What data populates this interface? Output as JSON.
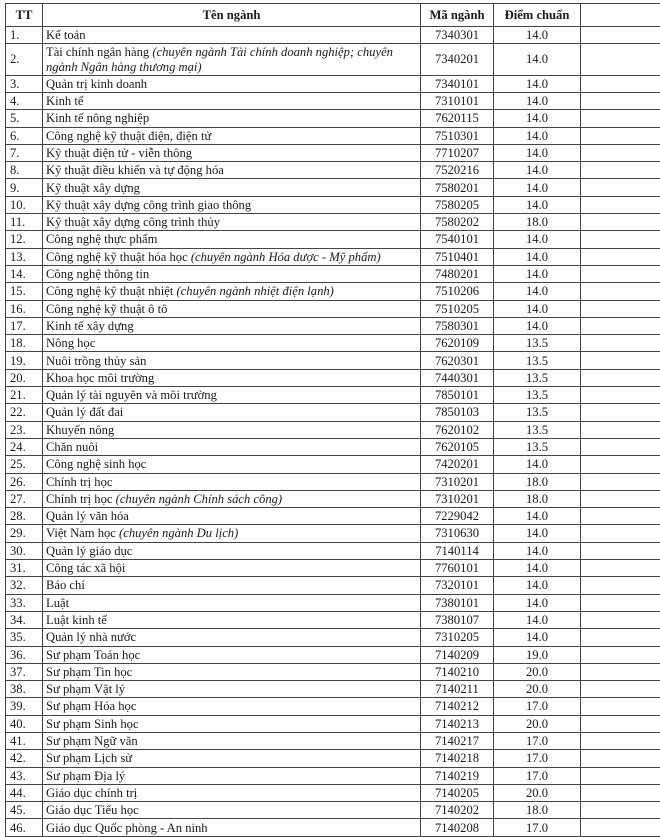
{
  "headers": {
    "tt": "TT",
    "name": "Tên ngành",
    "code": "Mã ngành",
    "score": "Điểm chuẩn"
  },
  "rows": [
    {
      "tt": "1.",
      "name": "Kế toán",
      "note": "",
      "code": "7340301",
      "score": "14.0"
    },
    {
      "tt": "2.",
      "name": "Tài chính ngân hàng ",
      "note": "(chuyên ngành Tài chính doanh nghiệp; chuyên ngành Ngân hàng thương mại)",
      "code": "7340201",
      "score": "14.0"
    },
    {
      "tt": "3.",
      "name": "Quản trị kinh doanh",
      "note": "",
      "code": "7340101",
      "score": "14.0"
    },
    {
      "tt": "4.",
      "name": "Kinh tế",
      "note": "",
      "code": "7310101",
      "score": "14.0"
    },
    {
      "tt": "5.",
      "name": "Kinh tế nông nghiệp",
      "note": "",
      "code": "7620115",
      "score": "14.0"
    },
    {
      "tt": "6.",
      "name": "Công nghệ kỹ thuật điện, điện tử",
      "note": "",
      "code": "7510301",
      "score": "14.0"
    },
    {
      "tt": "7.",
      "name": "Kỹ thuật điện tử - viễn thông",
      "note": "",
      "code": "7710207",
      "score": "14.0"
    },
    {
      "tt": "8.",
      "name": "Kỹ thuật điều khiển và tự động hóa",
      "note": "",
      "code": "7520216",
      "score": "14.0"
    },
    {
      "tt": "9.",
      "name": "Kỹ thuật xây dựng",
      "note": "",
      "code": "7580201",
      "score": "14.0"
    },
    {
      "tt": "10.",
      "name": "Kỹ thuật xây dựng công trình giao thông",
      "note": "",
      "code": "7580205",
      "score": "14.0"
    },
    {
      "tt": "11.",
      "name": "Kỹ thuật xây dựng công trình thủy",
      "note": "",
      "code": "7580202",
      "score": "18.0"
    },
    {
      "tt": "12.",
      "name": "Công nghệ thực phẩm",
      "note": "",
      "code": "7540101",
      "score": "14.0"
    },
    {
      "tt": "13.",
      "name": "Công nghệ kỹ thuật hóa học ",
      "note": "(chuyên ngành Hóa dược - Mỹ phẩm)",
      "code": "7510401",
      "score": "14.0"
    },
    {
      "tt": "14.",
      "name": "Công nghệ thông tin",
      "note": "",
      "code": "7480201",
      "score": "14.0"
    },
    {
      "tt": "15.",
      "name": "Công nghệ kỹ thuật nhiệt ",
      "note": "(chuyên ngành nhiệt điện lạnh)",
      "code": "7510206",
      "score": "14.0"
    },
    {
      "tt": "16.",
      "name": "Công nghệ kỹ thuật ô tô",
      "note": "",
      "code": "7510205",
      "score": "14.0"
    },
    {
      "tt": "17.",
      "name": "Kinh tế xây dựng",
      "note": "",
      "code": "7580301",
      "score": "14.0"
    },
    {
      "tt": "18.",
      "name": "Nông học",
      "note": "",
      "code": "7620109",
      "score": "13.5"
    },
    {
      "tt": "19.",
      "name": "Nuôi trồng thủy sản",
      "note": "",
      "code": "7620301",
      "score": "13.5"
    },
    {
      "tt": "20.",
      "name": "Khoa học môi trường",
      "note": "",
      "code": "7440301",
      "score": "13.5"
    },
    {
      "tt": "21.",
      "name": "Quản lý tài nguyên và môi trường",
      "note": "",
      "code": "7850101",
      "score": "13.5"
    },
    {
      "tt": "22.",
      "name": "Quản lý đất đai",
      "note": "",
      "code": "7850103",
      "score": "13.5"
    },
    {
      "tt": "23.",
      "name": "Khuyến nông",
      "note": "",
      "code": "7620102",
      "score": "13.5"
    },
    {
      "tt": "24.",
      "name": "Chăn nuôi",
      "note": "",
      "code": "7620105",
      "score": "13.5"
    },
    {
      "tt": "25.",
      "name": "Công nghệ sinh học",
      "note": "",
      "code": "7420201",
      "score": "14.0"
    },
    {
      "tt": "26.",
      "name": "Chính trị học",
      "note": "",
      "code": "7310201",
      "score": "18.0"
    },
    {
      "tt": "27.",
      "name": "Chính trị học ",
      "note": "(chuyên ngành Chính sách công)",
      "code": "7310201",
      "score": "18.0"
    },
    {
      "tt": "28.",
      "name": "Quản lý văn hóa",
      "note": "",
      "code": "7229042",
      "score": "14.0"
    },
    {
      "tt": "29.",
      "name": "Việt Nam học ",
      "note": "(chuyên ngành Du lịch)",
      "code": "7310630",
      "score": "14.0"
    },
    {
      "tt": "30.",
      "name": "Quản lý giáo dục",
      "note": "",
      "code": "7140114",
      "score": "14.0"
    },
    {
      "tt": "31.",
      "name": "Công tác xã hội",
      "note": "",
      "code": "7760101",
      "score": "14.0"
    },
    {
      "tt": "32.",
      "name": "Báo chí",
      "note": "",
      "code": "7320101",
      "score": "14.0"
    },
    {
      "tt": "33.",
      "name": "Luật",
      "note": "",
      "code": "7380101",
      "score": "14.0"
    },
    {
      "tt": "34.",
      "name": "Luật kinh tế",
      "note": "",
      "code": "7380107",
      "score": "14.0"
    },
    {
      "tt": "35.",
      "name": "Quản lý nhà nước",
      "note": "",
      "code": "7310205",
      "score": "14.0"
    },
    {
      "tt": "36.",
      "name": "Sư phạm Toán học",
      "note": "",
      "code": "7140209",
      "score": "19.0"
    },
    {
      "tt": "37.",
      "name": "Sư phạm Tin học",
      "note": "",
      "code": "7140210",
      "score": "20.0"
    },
    {
      "tt": "38.",
      "name": "Sư phạm Vật lý",
      "note": "",
      "code": "7140211",
      "score": "20.0"
    },
    {
      "tt": "39.",
      "name": "Sư phạm Hóa học",
      "note": "",
      "code": "7140212",
      "score": "17.0"
    },
    {
      "tt": "40.",
      "name": "Sư phạm Sinh học",
      "note": "",
      "code": "7140213",
      "score": "20.0"
    },
    {
      "tt": "41.",
      "name": "Sư phạm Ngữ văn",
      "note": "",
      "code": "7140217",
      "score": "17.0"
    },
    {
      "tt": "42.",
      "name": "Sư phạm Lịch sử",
      "note": "",
      "code": "7140218",
      "score": "17.0"
    },
    {
      "tt": "43.",
      "name": "Sư phạm Địa lý",
      "note": "",
      "code": "7140219",
      "score": "17.0"
    },
    {
      "tt": "44.",
      "name": "Giáo dục chính trị",
      "note": "",
      "code": "7140205",
      "score": "20.0"
    },
    {
      "tt": "45.",
      "name": "Giáo dục Tiểu học",
      "note": "",
      "code": "7140202",
      "score": "18.0"
    },
    {
      "tt": "46.",
      "name": "Giáo dục Quốc phòng - An ninh",
      "note": "",
      "code": "7140208",
      "score": "17.0"
    }
  ]
}
